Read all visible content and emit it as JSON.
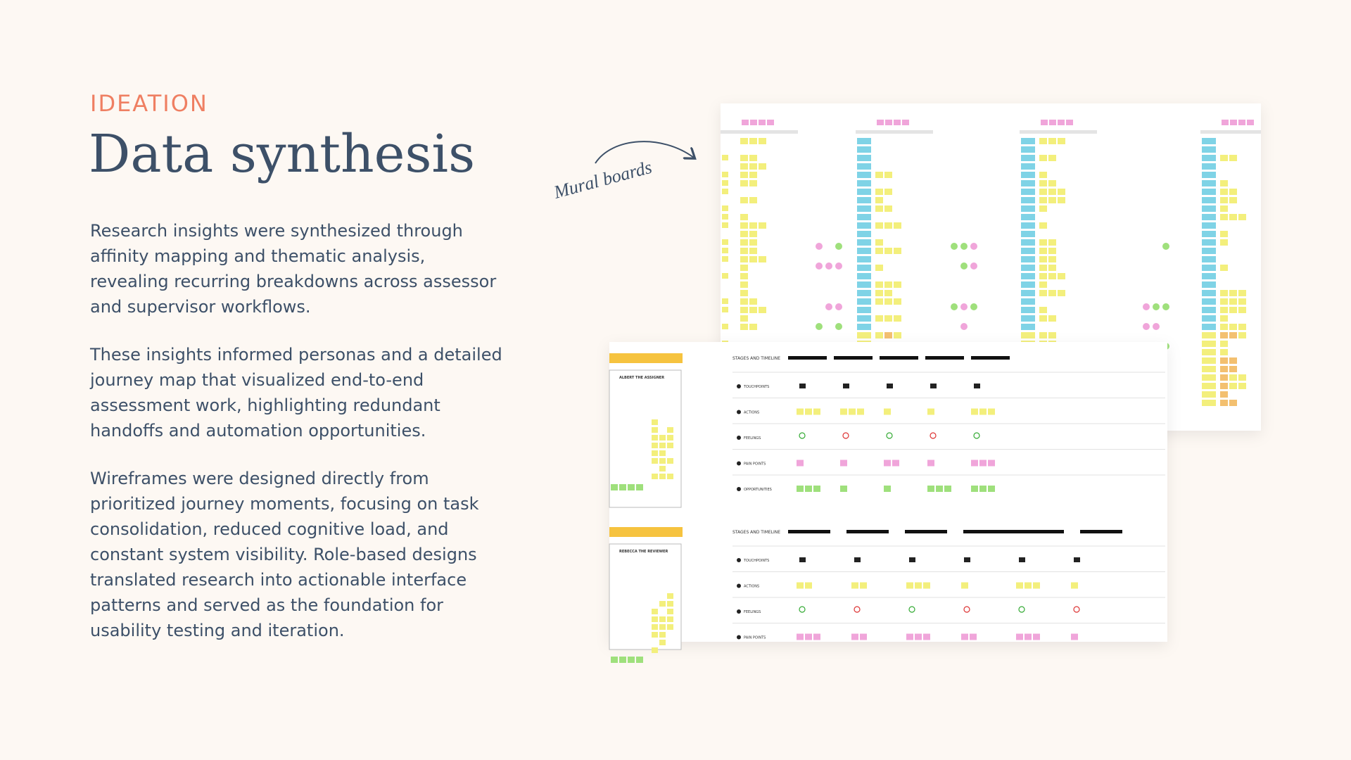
{
  "header": {
    "eyebrow": "IDEATION",
    "title": "Data synthesis"
  },
  "body": {
    "paragraphs": [
      "Research insights were synthesized through affinity mapping and thematic analysis, revealing recurring breakdowns across assessor and supervisor workflows.",
      "These insights informed personas and a detailed journey map that visualized end-to-end assessment work, highlighting redundant handoffs and automation opportunities.",
      "Wireframes were designed directly from prioritized journey moments, focusing on task consolidation, reduced cognitive load, and constant system visibility. Role-based designs translated research into actionable interface patterns and served as the foundation for usability testing and iteration."
    ]
  },
  "annotation": "Mural boards",
  "journey_map": {
    "sections": [
      {
        "persona": "ALBERT THE ASSIGNER",
        "stages_label": "STAGES AND TIMELINE",
        "rows": [
          "TOUCHPOINTS",
          "ACTIONS",
          "FEELINGS",
          "PAIN POINTS",
          "OPPORTUNITIES"
        ]
      },
      {
        "persona": "REBECCA THE REVIEWER",
        "stages_label": "STAGES AND TIMELINE",
        "rows": [
          "TOUCHPOINTS",
          "ACTIONS",
          "FEELINGS",
          "PAIN POINTS"
        ]
      }
    ]
  }
}
